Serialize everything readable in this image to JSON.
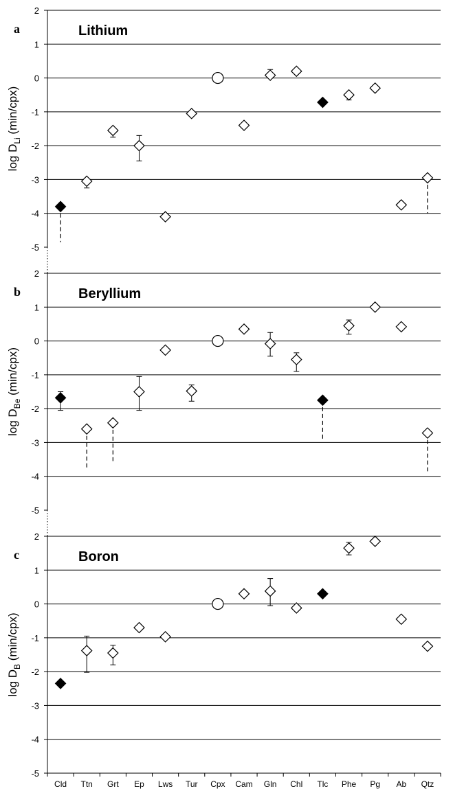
{
  "categories": [
    "Cld",
    "Ttn",
    "Grt",
    "Ep",
    "Lws",
    "Tur",
    "Cpx",
    "Cam",
    "Gln",
    "Chl",
    "Tlc",
    "Phe",
    "Pg",
    "Ab",
    "Qtz"
  ],
  "chart_data": [
    {
      "type": "scatter",
      "panel": "a",
      "title": "Lithium",
      "ylabel": {
        "prefix": "log D",
        "subscript": "Li",
        "suffix": " (min/cpx)"
      },
      "ylim": [
        -5,
        2
      ],
      "yticks": [
        2,
        1,
        0,
        -1,
        -2,
        -3,
        -4,
        -5
      ],
      "grid": true,
      "points": [
        {
          "x": "Cld",
          "y": -3.8,
          "marker": "filled-diamond",
          "dashed_to": -4.85
        },
        {
          "x": "Ttn",
          "y": -3.05,
          "marker": "open-diamond",
          "err_lo": -3.25,
          "err_hi": -3.05
        },
        {
          "x": "Grt",
          "y": -1.55,
          "marker": "open-diamond",
          "err_lo": -1.75,
          "err_hi": -1.55
        },
        {
          "x": "Ep",
          "y": -2.0,
          "marker": "open-diamond",
          "err_lo": -2.45,
          "err_hi": -1.7
        },
        {
          "x": "Lws",
          "y": -4.1,
          "marker": "open-diamond"
        },
        {
          "x": "Tur",
          "y": -1.05,
          "marker": "open-diamond"
        },
        {
          "x": "Cpx",
          "y": 0,
          "marker": "open-circle"
        },
        {
          "x": "Cam",
          "y": -1.4,
          "marker": "open-diamond"
        },
        {
          "x": "Gln",
          "y": 0.08,
          "marker": "open-diamond",
          "err_lo": 0.08,
          "err_hi": 0.25
        },
        {
          "x": "Chl",
          "y": 0.2,
          "marker": "open-diamond"
        },
        {
          "x": "Tlc",
          "y": -0.72,
          "marker": "filled-diamond"
        },
        {
          "x": "Phe",
          "y": -0.5,
          "marker": "open-diamond",
          "err_lo": -0.65,
          "err_hi": -0.5
        },
        {
          "x": "Pg",
          "y": -0.3,
          "marker": "open-diamond"
        },
        {
          "x": "Ab",
          "y": -3.75,
          "marker": "open-diamond"
        },
        {
          "x": "Qtz",
          "y": -2.95,
          "marker": "open-diamond",
          "dashed_to": -4.0
        }
      ]
    },
    {
      "type": "scatter",
      "panel": "b",
      "title": "Beryllium",
      "ylabel": {
        "prefix": "log D",
        "subscript": "Be",
        "suffix": " (min/cpx)"
      },
      "ylim": [
        -5,
        2
      ],
      "yticks": [
        2,
        1,
        0,
        -1,
        -2,
        -3,
        -4,
        -5
      ],
      "grid": true,
      "points": [
        {
          "x": "Cld",
          "y": -1.68,
          "marker": "filled-diamond",
          "err_lo": -2.05,
          "err_hi": -1.5
        },
        {
          "x": "Ttn",
          "y": -2.6,
          "marker": "open-diamond",
          "dashed_to": -3.75
        },
        {
          "x": "Grt",
          "y": -2.42,
          "marker": "open-diamond",
          "dashed_to": -3.55
        },
        {
          "x": "Ep",
          "y": -1.5,
          "marker": "open-diamond",
          "err_lo": -2.05,
          "err_hi": -1.05
        },
        {
          "x": "Lws",
          "y": -0.27,
          "marker": "open-diamond"
        },
        {
          "x": "Tur",
          "y": -1.48,
          "marker": "open-diamond",
          "err_lo": -1.78,
          "err_hi": -1.3
        },
        {
          "x": "Cpx",
          "y": 0,
          "marker": "open-circle"
        },
        {
          "x": "Cam",
          "y": 0.35,
          "marker": "open-diamond"
        },
        {
          "x": "Gln",
          "y": -0.08,
          "marker": "open-diamond",
          "err_lo": -0.45,
          "err_hi": 0.25
        },
        {
          "x": "Chl",
          "y": -0.55,
          "marker": "open-diamond",
          "err_lo": -0.9,
          "err_hi": -0.35
        },
        {
          "x": "Tlc",
          "y": -1.75,
          "marker": "filled-diamond",
          "dashed_to": -2.9
        },
        {
          "x": "Phe",
          "y": 0.45,
          "marker": "open-diamond",
          "err_lo": 0.2,
          "err_hi": 0.62
        },
        {
          "x": "Pg",
          "y": 1.0,
          "marker": "open-diamond"
        },
        {
          "x": "Ab",
          "y": 0.42,
          "marker": "open-diamond"
        },
        {
          "x": "Qtz",
          "y": -2.72,
          "marker": "open-diamond",
          "dashed_to": -3.85
        }
      ]
    },
    {
      "type": "scatter",
      "panel": "c",
      "title": "Boron",
      "ylabel": {
        "prefix": "log D",
        "subscript": "B",
        "suffix": " (min/cpx)"
      },
      "ylim": [
        -5,
        2
      ],
      "yticks": [
        2,
        1,
        0,
        -1,
        -2,
        -3,
        -4,
        -5
      ],
      "grid": true,
      "points": [
        {
          "x": "Cld",
          "y": -2.35,
          "marker": "filled-diamond"
        },
        {
          "x": "Ttn",
          "y": -1.38,
          "marker": "open-diamond",
          "err_lo": -2.02,
          "err_hi": -0.95
        },
        {
          "x": "Grt",
          "y": -1.45,
          "marker": "open-diamond",
          "err_lo": -1.8,
          "err_hi": -1.22
        },
        {
          "x": "Ep",
          "y": -0.7,
          "marker": "open-diamond"
        },
        {
          "x": "Lws",
          "y": -0.97,
          "marker": "open-diamond"
        },
        {
          "x": "Cpx",
          "y": 0,
          "marker": "open-circle"
        },
        {
          "x": "Cam",
          "y": 0.3,
          "marker": "open-diamond"
        },
        {
          "x": "Gln",
          "y": 0.38,
          "marker": "open-diamond",
          "err_lo": -0.05,
          "err_hi": 0.75
        },
        {
          "x": "Chl",
          "y": -0.12,
          "marker": "open-diamond"
        },
        {
          "x": "Tlc",
          "y": 0.3,
          "marker": "filled-diamond"
        },
        {
          "x": "Phe",
          "y": 1.65,
          "marker": "open-diamond",
          "err_lo": 1.45,
          "err_hi": 1.82
        },
        {
          "x": "Pg",
          "y": 1.85,
          "marker": "open-diamond"
        },
        {
          "x": "Ab",
          "y": -0.45,
          "marker": "open-diamond"
        },
        {
          "x": "Qtz",
          "y": -1.25,
          "marker": "open-diamond"
        }
      ]
    }
  ]
}
